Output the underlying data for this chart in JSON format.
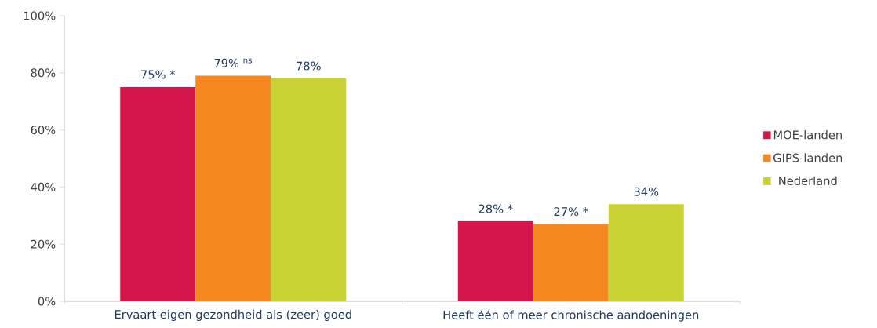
{
  "chart_data": {
    "type": "bar",
    "categories": [
      "Ervaart eigen gezondheid als (zeer) goed",
      "Heeft één of meer chronische aandoeningen"
    ],
    "series": [
      {
        "name": "MOE-landen",
        "color": "#d4164b",
        "values": [
          75,
          28
        ],
        "value_labels": [
          "75% *",
          "28% *"
        ]
      },
      {
        "name": "GIPS-landen",
        "color": "#f5891f",
        "values": [
          79,
          27
        ],
        "value_labels": [
          "79% $^{ns}$",
          "27% *"
        ]
      },
      {
        "name": "Nederland",
        "color": "#c8d232",
        "values": [
          78,
          34
        ],
        "value_labels": [
          "78%",
          "34%"
        ]
      }
    ],
    "ylim": [
      0,
      100
    ],
    "yticks": [
      {
        "value": 0,
        "label": "0%"
      },
      {
        "value": 20,
        "label": "20%"
      },
      {
        "value": 40,
        "label": "40%"
      },
      {
        "value": 60,
        "label": "60%"
      },
      {
        "value": 80,
        "label": "80%"
      },
      {
        "value": 100,
        "label": "100%"
      }
    ],
    "grid": false,
    "legend": "right"
  }
}
